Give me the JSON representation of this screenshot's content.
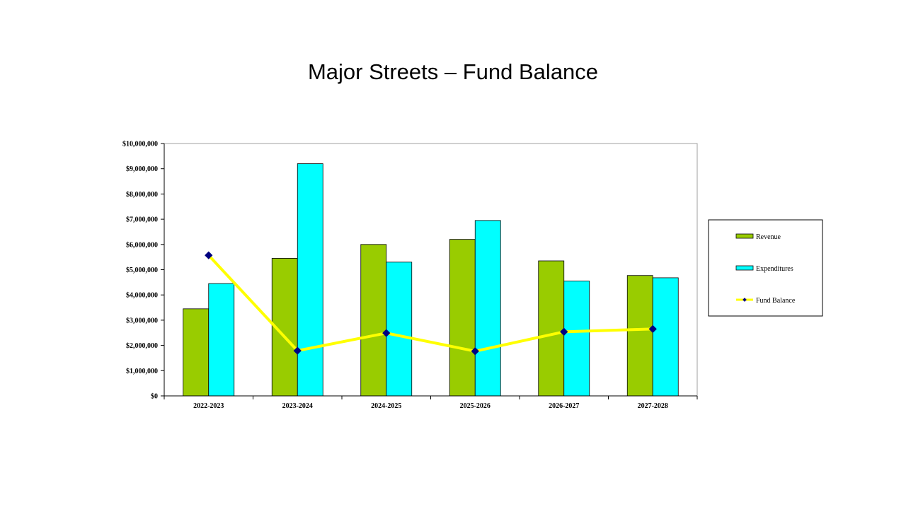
{
  "chart_data": {
    "type": "bar",
    "title": "Major Streets – Fund Balance",
    "categories": [
      "2022-2023",
      "2023-2024",
      "2024-2025",
      "2025-2026",
      "2026-2027",
      "2027-2028"
    ],
    "series": [
      {
        "name": "Revenue",
        "type": "bar",
        "color": "#99cc00",
        "values": [
          3450000,
          5450000,
          6000000,
          6200000,
          5350000,
          4770000
        ]
      },
      {
        "name": "Expenditures",
        "type": "bar",
        "color": "#00ffff",
        "values": [
          4450000,
          9200000,
          5300000,
          6950000,
          4550000,
          4680000
        ]
      },
      {
        "name": "Fund Balance",
        "type": "line",
        "color": "#ffff00",
        "marker_color": "#000080",
        "values": [
          5570000,
          1790000,
          2490000,
          1770000,
          2540000,
          2650000
        ]
      }
    ],
    "y_ticks": [
      "$0",
      "$1,000,000",
      "$2,000,000",
      "$3,000,000",
      "$4,000,000",
      "$5,000,000",
      "$6,000,000",
      "$7,000,000",
      "$8,000,000",
      "$9,000,000",
      "$10,000,000"
    ],
    "ylim": [
      0,
      10000000
    ],
    "grid": false,
    "legend_position": "right"
  }
}
